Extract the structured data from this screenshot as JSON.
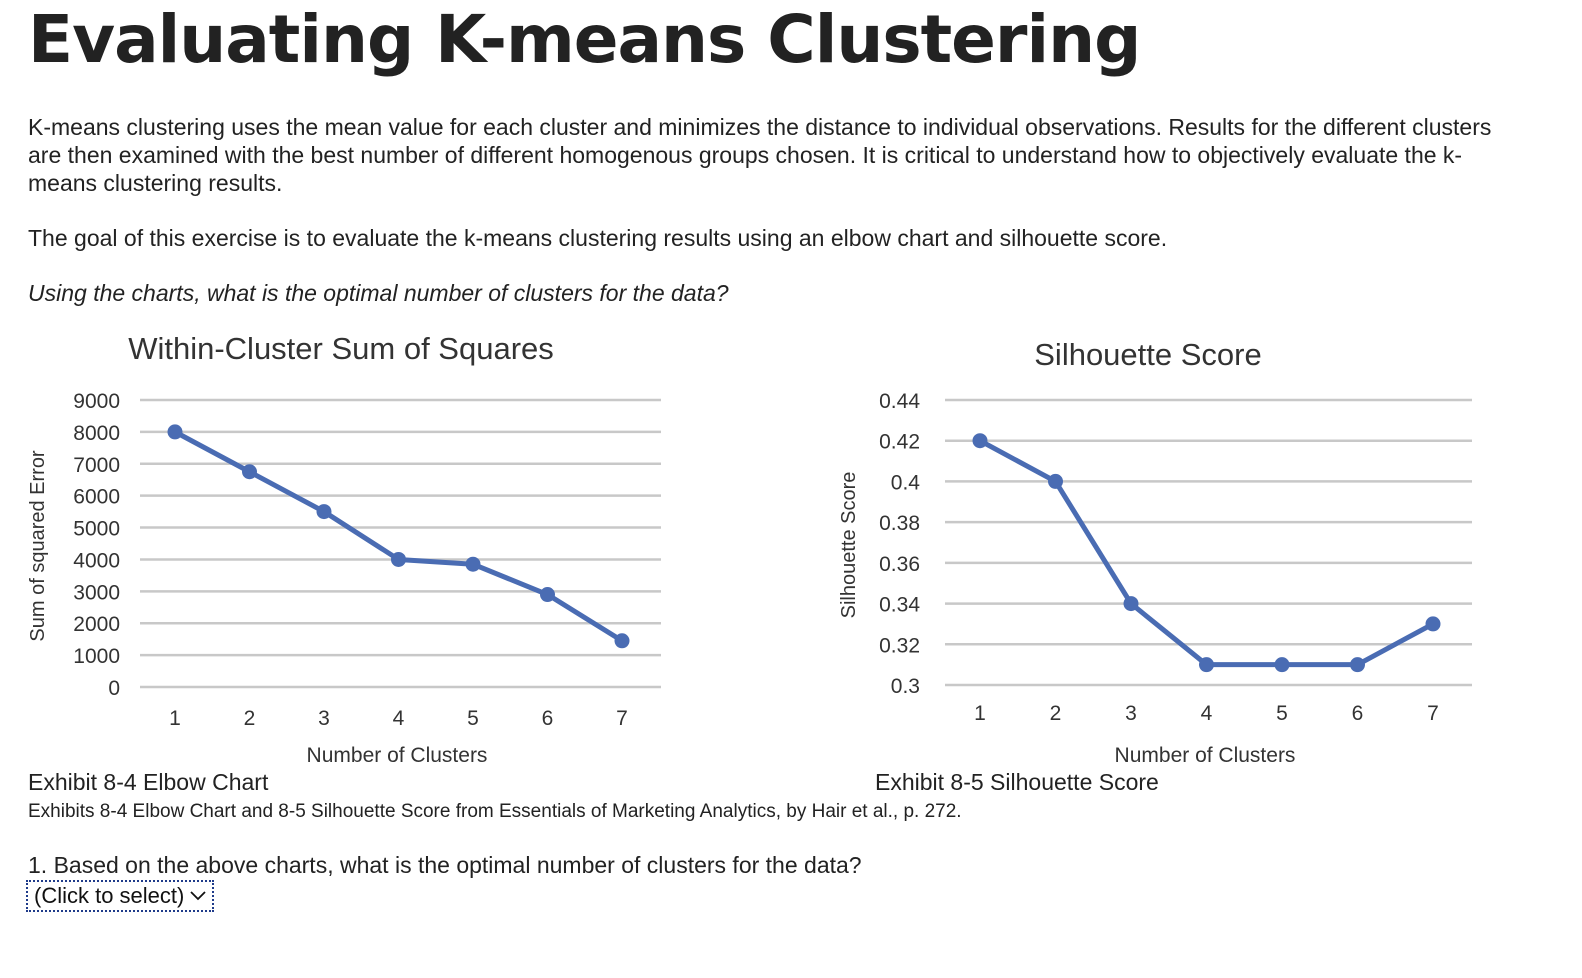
{
  "page": {
    "title": "Evaluating K-means Clustering",
    "intro": "K-means clustering uses the mean value for each cluster and minimizes the distance to individual observations. Results for the different clusters are then examined with the best number of different homogenous groups chosen.  It is critical to understand how to objectively evaluate the k-means clustering results.",
    "goal": "The goal of this exercise is to evaluate the k-means clustering results using an elbow chart and silhouette score.",
    "prompt": "Using the charts, what is the optimal number of clusters for the data?"
  },
  "exhibits": {
    "left_caption": "Exhibit 8-4 Elbow Chart",
    "right_caption": "Exhibit 8-5 Silhouette Score",
    "source": "Exhibits 8-4 Elbow Chart and 8-5 Silhouette Score from Essentials of Marketing Analytics, by Hair et al., p. 272."
  },
  "question": {
    "text": "1. Based on the above charts, what is the optimal number of clusters for the data?",
    "select_value": "(Click to select)",
    "select_icon": "chevron-down-icon"
  },
  "colors": {
    "series": "#4a6cb3",
    "grid": "#c8c8c8",
    "text": "#222222"
  },
  "chart_data": [
    {
      "type": "line",
      "title": "Within-Cluster Sum of Squares",
      "xlabel": "Number of Clusters",
      "ylabel": "Sum of squared Error",
      "x": [
        1,
        2,
        3,
        4,
        5,
        6,
        7
      ],
      "y": [
        8000,
        6750,
        5500,
        4000,
        3850,
        2900,
        1450
      ],
      "ylim": [
        0,
        9000
      ],
      "yticks": [
        "0",
        "1000",
        "2000",
        "3000",
        "4000",
        "5000",
        "6000",
        "7000",
        "8000",
        "9000"
      ],
      "xticks": [
        "1",
        "2",
        "3",
        "4",
        "5",
        "6",
        "7"
      ],
      "grid": true,
      "legend": "none"
    },
    {
      "type": "line",
      "title": "Silhouette Score",
      "xlabel": "Number of Clusters",
      "ylabel": "Silhouette Score",
      "x": [
        1,
        2,
        3,
        4,
        5,
        6,
        7
      ],
      "y": [
        0.42,
        0.4,
        0.34,
        0.31,
        0.31,
        0.31,
        0.33
      ],
      "ylim": [
        0.3,
        0.44
      ],
      "yticks": [
        "0.3",
        "0.32",
        "0.34",
        "0.36",
        "0.38",
        "0.4",
        "0.42",
        "0.44"
      ],
      "xticks": [
        "1",
        "2",
        "3",
        "4",
        "5",
        "6",
        "7"
      ],
      "grid": true,
      "legend": "none"
    }
  ]
}
